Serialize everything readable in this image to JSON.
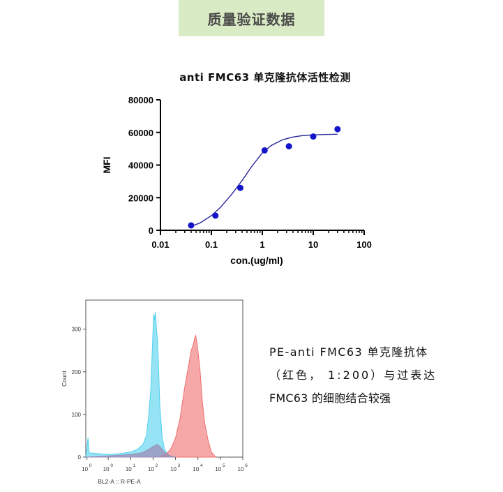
{
  "banner": {
    "text": "质量验证数据"
  },
  "description": {
    "line1": "PE-anti  FMC63  单克隆抗体",
    "line2": "（红色， 1:200）与过表达",
    "line3": "FMC63 的细胞结合较强"
  },
  "chart_data": [
    {
      "type": "scatter",
      "title": "anti FMC63  单克隆抗体活性检测",
      "xlabel": "con.(ug/ml)",
      "ylabel": "MFI",
      "x_scale": "log",
      "xlim": [
        0.01,
        100
      ],
      "ylim": [
        0,
        80000
      ],
      "x_ticks": [
        "0.01",
        "0.1",
        "1",
        "10",
        "100"
      ],
      "y_ticks": [
        "0",
        "20000",
        "40000",
        "60000",
        "80000"
      ],
      "x": [
        0.04,
        0.12,
        0.37,
        1.11,
        3.33,
        10,
        30
      ],
      "y": [
        3000,
        9000,
        26000,
        49000,
        51500,
        57500,
        62000
      ],
      "fit_curve": {
        "x": [
          0.04,
          0.06,
          0.1,
          0.15,
          0.25,
          0.4,
          0.6,
          1,
          1.5,
          2.5,
          4,
          6,
          10,
          15,
          30
        ],
        "y": [
          2500,
          4500,
          9000,
          14000,
          22000,
          30500,
          38500,
          47500,
          52000,
          55500,
          57200,
          58000,
          58500,
          58700,
          58900
        ]
      },
      "colors": {
        "points": "#1414c8",
        "curve": "#26269a",
        "axis": "#000000"
      },
      "grid": false,
      "legend": "none"
    },
    {
      "type": "area",
      "xlabel": "BL2-A :: R-PE-A",
      "ylabel": "Count",
      "x_scale": "log",
      "x_ticks": [
        "0",
        "0",
        "1",
        "2",
        "3",
        "4",
        "5",
        "6"
      ],
      "x_tick_base": "10",
      "y_ticks": [
        "0",
        "100",
        "200",
        "300"
      ],
      "ylim": [
        0,
        360
      ],
      "xlim": [
        -1,
        6
      ],
      "series": [
        {
          "color": "#4fd0ee",
          "x": [
            -1,
            -0.9,
            -0.85,
            0,
            0.5,
            1,
            1.3,
            1.55,
            1.7,
            1.8,
            1.9,
            1.95,
            2.0,
            2.03,
            2.06,
            2.1,
            2.15,
            2.2,
            2.25,
            2.3,
            2.4,
            2.5,
            2.6,
            2.7,
            2.8,
            3.0
          ],
          "y": [
            0,
            45,
            10,
            6,
            8,
            12,
            18,
            30,
            50,
            95,
            160,
            230,
            300,
            335,
            320,
            340,
            300,
            270,
            200,
            120,
            50,
            20,
            10,
            5,
            2,
            0
          ]
        },
        {
          "color": "#f06e6e",
          "x": [
            2.3,
            2.6,
            2.8,
            3.0,
            3.2,
            3.4,
            3.5,
            3.6,
            3.7,
            3.8,
            3.85,
            3.9,
            3.95,
            4.0,
            4.1,
            4.2,
            4.3,
            4.45,
            4.6,
            4.8
          ],
          "y": [
            0,
            8,
            20,
            45,
            90,
            160,
            190,
            220,
            250,
            265,
            278,
            285,
            270,
            250,
            200,
            130,
            80,
            40,
            12,
            0
          ]
        },
        {
          "color": "#9b8fb6",
          "x": [
            -1,
            0,
            1,
            1.5,
            1.8,
            2.0,
            2.2,
            2.35,
            2.5,
            2.7,
            3.0
          ],
          "y": [
            0,
            3,
            6,
            10,
            18,
            25,
            30,
            22,
            12,
            4,
            0
          ]
        }
      ],
      "grid": false,
      "legend": "none"
    }
  ]
}
